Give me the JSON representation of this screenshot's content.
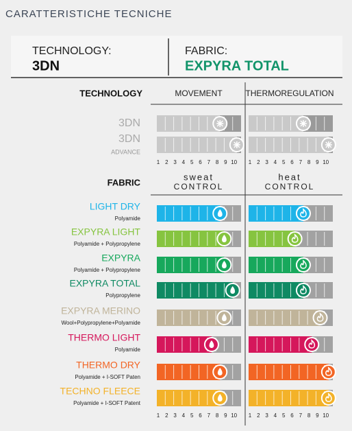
{
  "title": "CARATTERISTICHE TECNICHE",
  "header": {
    "technology_label": "TECHNOLOGY:",
    "technology_value": "3DN",
    "fabric_label": "FABRIC:",
    "fabric_value": "EXPYRA TOTAL"
  },
  "scale": [
    1,
    2,
    3,
    4,
    5,
    6,
    7,
    8,
    9,
    10
  ],
  "technology": {
    "heading": "TECHNOLOGY",
    "columns": [
      "MOVEMENT",
      "THERMOREGULATION"
    ],
    "rows": [
      {
        "name": "3DN",
        "ratings": [
          8,
          7
        ]
      },
      {
        "name": "3DN",
        "sub": "ADVANCE",
        "ratings": [
          10,
          10
        ]
      }
    ]
  },
  "fabric": {
    "heading": "FABRIC",
    "columns": [
      {
        "top": "sweat",
        "bottom": "CONTROL"
      },
      {
        "top": "heat",
        "bottom": "CONTROL"
      }
    ],
    "rows": [
      {
        "name": "LIGHT DRY",
        "sub": "Polyamide",
        "color": "#1eb4e8",
        "ratings": [
          8,
          7
        ]
      },
      {
        "name": "EXPYRA LIGHT",
        "sub": "Polyamide + Polypropylene",
        "color": "#86c440",
        "ratings": [
          8.5,
          6
        ]
      },
      {
        "name": "EXPYRA",
        "sub": "Polyamide + Polypropylene",
        "color": "#17a85c",
        "ratings": [
          8.5,
          7
        ]
      },
      {
        "name": "EXPYRA TOTAL",
        "sub": "Polypropylene",
        "color": "#0f8a63",
        "ratings": [
          9.5,
          7
        ]
      },
      {
        "name": "EXPYRA MERINO",
        "sub": "Wool+Polypropylene+Polyamide",
        "color": "#c0b49a",
        "ratings": [
          8.5,
          9
        ]
      },
      {
        "name": "THERMO LIGHT",
        "sub": "Polyamide",
        "color": "#d5175b",
        "ratings": [
          7,
          8
        ]
      },
      {
        "name": "THERMO DRY",
        "sub": "Polyamide + I-SOFT Paten",
        "color": "#f26524",
        "ratings": [
          8,
          10
        ]
      },
      {
        "name": "TECHNO FLEECE",
        "sub": "Polyamide + I-SOFT Patent",
        "color": "#f3b229",
        "ratings": [
          8,
          10
        ]
      }
    ]
  }
}
